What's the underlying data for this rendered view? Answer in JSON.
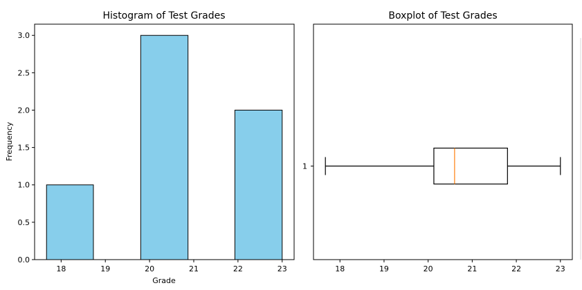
{
  "chart_data": [
    {
      "type": "bar",
      "title": "Histogram of Test Grades",
      "xlabel": "Grade",
      "ylabel": "Frequency",
      "bins": [
        {
          "start": 17.67,
          "end": 18.73,
          "count": 1
        },
        {
          "start": 18.73,
          "end": 19.8,
          "count": 0
        },
        {
          "start": 19.8,
          "end": 20.87,
          "count": 3
        },
        {
          "start": 20.87,
          "end": 21.93,
          "count": 0
        },
        {
          "start": 21.93,
          "end": 23.0,
          "count": 2
        }
      ],
      "xlim": [
        17.4,
        23.27
      ],
      "ylim": [
        0,
        3.15
      ],
      "xticks": [
        18,
        19,
        20,
        21,
        22,
        23
      ],
      "yticks": [
        0,
        0.5,
        1,
        1.5,
        2,
        2.5,
        3
      ],
      "ytick_labels": [
        "0.0",
        "0.5",
        "1.0",
        "1.5",
        "2.0",
        "2.5",
        "3.0"
      ],
      "bar_color": "#87ceeb",
      "grid": false
    },
    {
      "type": "boxplot",
      "title": "Boxplot of Test Grades",
      "orientation": "horizontal",
      "category_labels": [
        "1"
      ],
      "whisker_low": 17.67,
      "q1": 20.13,
      "median": 20.6,
      "q3": 21.8,
      "whisker_high": 23.0,
      "xlim": [
        17.4,
        23.27
      ],
      "xticks": [
        18,
        19,
        20,
        21,
        22,
        23
      ],
      "median_color": "#ff7f0e",
      "grid": false
    }
  ]
}
